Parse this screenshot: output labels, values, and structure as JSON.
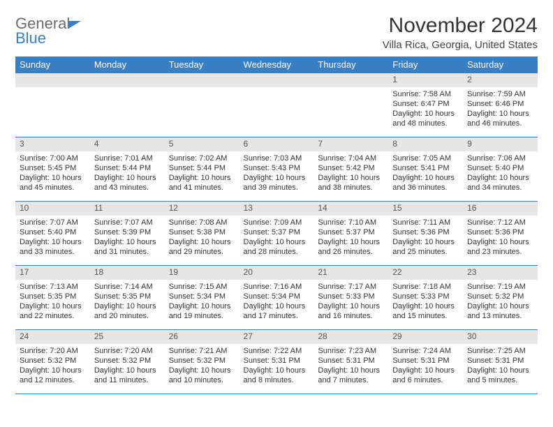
{
  "logo": {
    "word1": "General",
    "word2": "Blue"
  },
  "title": "November 2024",
  "subtitle": "Villa Rica, Georgia, United States",
  "style": {
    "header_bg": "#3a7fc4",
    "header_text": "#ffffff",
    "daynum_bg": "#e6e6e6",
    "daynum_text": "#555555",
    "row_border": "#3a7fc4",
    "body_text": "#333333",
    "page_bg": "#ffffff",
    "title_fontsize": 30,
    "subtitle_fontsize": 15,
    "header_fontsize": 13,
    "cell_fontsize": 11,
    "logo_grey": "#6b6b6b",
    "logo_blue": "#3a7fc4"
  },
  "day_headers": [
    "Sunday",
    "Monday",
    "Tuesday",
    "Wednesday",
    "Thursday",
    "Friday",
    "Saturday"
  ],
  "weeks": [
    [
      {
        "n": "",
        "sunrise": "",
        "sunset": "",
        "daylight": ""
      },
      {
        "n": "",
        "sunrise": "",
        "sunset": "",
        "daylight": ""
      },
      {
        "n": "",
        "sunrise": "",
        "sunset": "",
        "daylight": ""
      },
      {
        "n": "",
        "sunrise": "",
        "sunset": "",
        "daylight": ""
      },
      {
        "n": "",
        "sunrise": "",
        "sunset": "",
        "daylight": ""
      },
      {
        "n": "1",
        "sunrise": "Sunrise: 7:58 AM",
        "sunset": "Sunset: 6:47 PM",
        "daylight": "Daylight: 10 hours and 48 minutes."
      },
      {
        "n": "2",
        "sunrise": "Sunrise: 7:59 AM",
        "sunset": "Sunset: 6:46 PM",
        "daylight": "Daylight: 10 hours and 46 minutes."
      }
    ],
    [
      {
        "n": "3",
        "sunrise": "Sunrise: 7:00 AM",
        "sunset": "Sunset: 5:45 PM",
        "daylight": "Daylight: 10 hours and 45 minutes."
      },
      {
        "n": "4",
        "sunrise": "Sunrise: 7:01 AM",
        "sunset": "Sunset: 5:44 PM",
        "daylight": "Daylight: 10 hours and 43 minutes."
      },
      {
        "n": "5",
        "sunrise": "Sunrise: 7:02 AM",
        "sunset": "Sunset: 5:44 PM",
        "daylight": "Daylight: 10 hours and 41 minutes."
      },
      {
        "n": "6",
        "sunrise": "Sunrise: 7:03 AM",
        "sunset": "Sunset: 5:43 PM",
        "daylight": "Daylight: 10 hours and 39 minutes."
      },
      {
        "n": "7",
        "sunrise": "Sunrise: 7:04 AM",
        "sunset": "Sunset: 5:42 PM",
        "daylight": "Daylight: 10 hours and 38 minutes."
      },
      {
        "n": "8",
        "sunrise": "Sunrise: 7:05 AM",
        "sunset": "Sunset: 5:41 PM",
        "daylight": "Daylight: 10 hours and 36 minutes."
      },
      {
        "n": "9",
        "sunrise": "Sunrise: 7:06 AM",
        "sunset": "Sunset: 5:40 PM",
        "daylight": "Daylight: 10 hours and 34 minutes."
      }
    ],
    [
      {
        "n": "10",
        "sunrise": "Sunrise: 7:07 AM",
        "sunset": "Sunset: 5:40 PM",
        "daylight": "Daylight: 10 hours and 33 minutes."
      },
      {
        "n": "11",
        "sunrise": "Sunrise: 7:07 AM",
        "sunset": "Sunset: 5:39 PM",
        "daylight": "Daylight: 10 hours and 31 minutes."
      },
      {
        "n": "12",
        "sunrise": "Sunrise: 7:08 AM",
        "sunset": "Sunset: 5:38 PM",
        "daylight": "Daylight: 10 hours and 29 minutes."
      },
      {
        "n": "13",
        "sunrise": "Sunrise: 7:09 AM",
        "sunset": "Sunset: 5:37 PM",
        "daylight": "Daylight: 10 hours and 28 minutes."
      },
      {
        "n": "14",
        "sunrise": "Sunrise: 7:10 AM",
        "sunset": "Sunset: 5:37 PM",
        "daylight": "Daylight: 10 hours and 26 minutes."
      },
      {
        "n": "15",
        "sunrise": "Sunrise: 7:11 AM",
        "sunset": "Sunset: 5:36 PM",
        "daylight": "Daylight: 10 hours and 25 minutes."
      },
      {
        "n": "16",
        "sunrise": "Sunrise: 7:12 AM",
        "sunset": "Sunset: 5:36 PM",
        "daylight": "Daylight: 10 hours and 23 minutes."
      }
    ],
    [
      {
        "n": "17",
        "sunrise": "Sunrise: 7:13 AM",
        "sunset": "Sunset: 5:35 PM",
        "daylight": "Daylight: 10 hours and 22 minutes."
      },
      {
        "n": "18",
        "sunrise": "Sunrise: 7:14 AM",
        "sunset": "Sunset: 5:35 PM",
        "daylight": "Daylight: 10 hours and 20 minutes."
      },
      {
        "n": "19",
        "sunrise": "Sunrise: 7:15 AM",
        "sunset": "Sunset: 5:34 PM",
        "daylight": "Daylight: 10 hours and 19 minutes."
      },
      {
        "n": "20",
        "sunrise": "Sunrise: 7:16 AM",
        "sunset": "Sunset: 5:34 PM",
        "daylight": "Daylight: 10 hours and 17 minutes."
      },
      {
        "n": "21",
        "sunrise": "Sunrise: 7:17 AM",
        "sunset": "Sunset: 5:33 PM",
        "daylight": "Daylight: 10 hours and 16 minutes."
      },
      {
        "n": "22",
        "sunrise": "Sunrise: 7:18 AM",
        "sunset": "Sunset: 5:33 PM",
        "daylight": "Daylight: 10 hours and 15 minutes."
      },
      {
        "n": "23",
        "sunrise": "Sunrise: 7:19 AM",
        "sunset": "Sunset: 5:32 PM",
        "daylight": "Daylight: 10 hours and 13 minutes."
      }
    ],
    [
      {
        "n": "24",
        "sunrise": "Sunrise: 7:20 AM",
        "sunset": "Sunset: 5:32 PM",
        "daylight": "Daylight: 10 hours and 12 minutes."
      },
      {
        "n": "25",
        "sunrise": "Sunrise: 7:20 AM",
        "sunset": "Sunset: 5:32 PM",
        "daylight": "Daylight: 10 hours and 11 minutes."
      },
      {
        "n": "26",
        "sunrise": "Sunrise: 7:21 AM",
        "sunset": "Sunset: 5:32 PM",
        "daylight": "Daylight: 10 hours and 10 minutes."
      },
      {
        "n": "27",
        "sunrise": "Sunrise: 7:22 AM",
        "sunset": "Sunset: 5:31 PM",
        "daylight": "Daylight: 10 hours and 8 minutes."
      },
      {
        "n": "28",
        "sunrise": "Sunrise: 7:23 AM",
        "sunset": "Sunset: 5:31 PM",
        "daylight": "Daylight: 10 hours and 7 minutes."
      },
      {
        "n": "29",
        "sunrise": "Sunrise: 7:24 AM",
        "sunset": "Sunset: 5:31 PM",
        "daylight": "Daylight: 10 hours and 6 minutes."
      },
      {
        "n": "30",
        "sunrise": "Sunrise: 7:25 AM",
        "sunset": "Sunset: 5:31 PM",
        "daylight": "Daylight: 10 hours and 5 minutes."
      }
    ]
  ]
}
